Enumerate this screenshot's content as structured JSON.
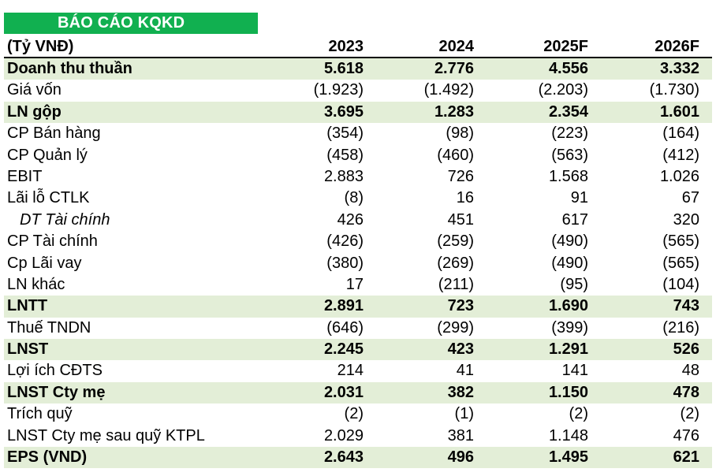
{
  "title": "BÁO CÁO KQKD",
  "header": {
    "label": "(Tỷ VNĐ)",
    "years": [
      "2023",
      "2024",
      "2025F",
      "2026F"
    ]
  },
  "rows": [
    {
      "label": "Doanh thu thuần",
      "values": [
        "5.618",
        "2.776",
        "4.556",
        "3.332"
      ]
    },
    {
      "label": "Giá vốn",
      "values": [
        "(1.923)",
        "(1.492)",
        "(2.203)",
        "(1.730)"
      ]
    },
    {
      "label": "LN gộp",
      "values": [
        "3.695",
        "1.283",
        "2.354",
        "1.601"
      ]
    },
    {
      "label": "CP Bán hàng",
      "values": [
        "(354)",
        "(98)",
        "(223)",
        "(164)"
      ]
    },
    {
      "label": "CP Quản lý",
      "values": [
        "(458)",
        "(460)",
        "(563)",
        "(412)"
      ]
    },
    {
      "label": "EBIT",
      "values": [
        "2.883",
        "726",
        "1.568",
        "1.026"
      ]
    },
    {
      "label": "Lãi lỗ CTLK",
      "values": [
        "(8)",
        "16",
        "91",
        "67"
      ]
    },
    {
      "label": "DT Tài chính",
      "values": [
        "426",
        "451",
        "617",
        "320"
      ]
    },
    {
      "label": "CP Tài chính",
      "values": [
        "(426)",
        "(259)",
        "(490)",
        "(565)"
      ]
    },
    {
      "label": "Cp Lãi vay",
      "values": [
        "(380)",
        "(269)",
        "(490)",
        "(565)"
      ]
    },
    {
      "label": "LN khác",
      "values": [
        "17",
        "(211)",
        "(95)",
        "(104)"
      ]
    },
    {
      "label": "LNTT",
      "values": [
        "2.891",
        "723",
        "1.690",
        "743"
      ]
    },
    {
      "label": "Thuế TNDN",
      "values": [
        "(646)",
        "(299)",
        "(399)",
        "(216)"
      ]
    },
    {
      "label": "LNST",
      "values": [
        "2.245",
        "423",
        "1.291",
        "526"
      ]
    },
    {
      "label": "Lợi ích CĐTS",
      "values": [
        "214",
        "41",
        "141",
        "48"
      ]
    },
    {
      "label": "LNST Cty mẹ",
      "values": [
        "2.031",
        "382",
        "1.150",
        "478"
      ]
    },
    {
      "label": "Trích quỹ",
      "values": [
        "(2)",
        "(1)",
        "(2)",
        "(2)"
      ]
    },
    {
      "label": "LNST Cty mẹ sau quỹ KTPL",
      "values": [
        "2.029",
        "381",
        "1.148",
        "476"
      ]
    },
    {
      "label": "EPS (VND)",
      "values": [
        "2.643",
        "496",
        "1.495",
        "621"
      ]
    }
  ],
  "colors": {
    "title_bg": "#11b050",
    "title_text": "#ffffff",
    "highlight_row_bg": "#e3eed7",
    "text": "#000000"
  }
}
